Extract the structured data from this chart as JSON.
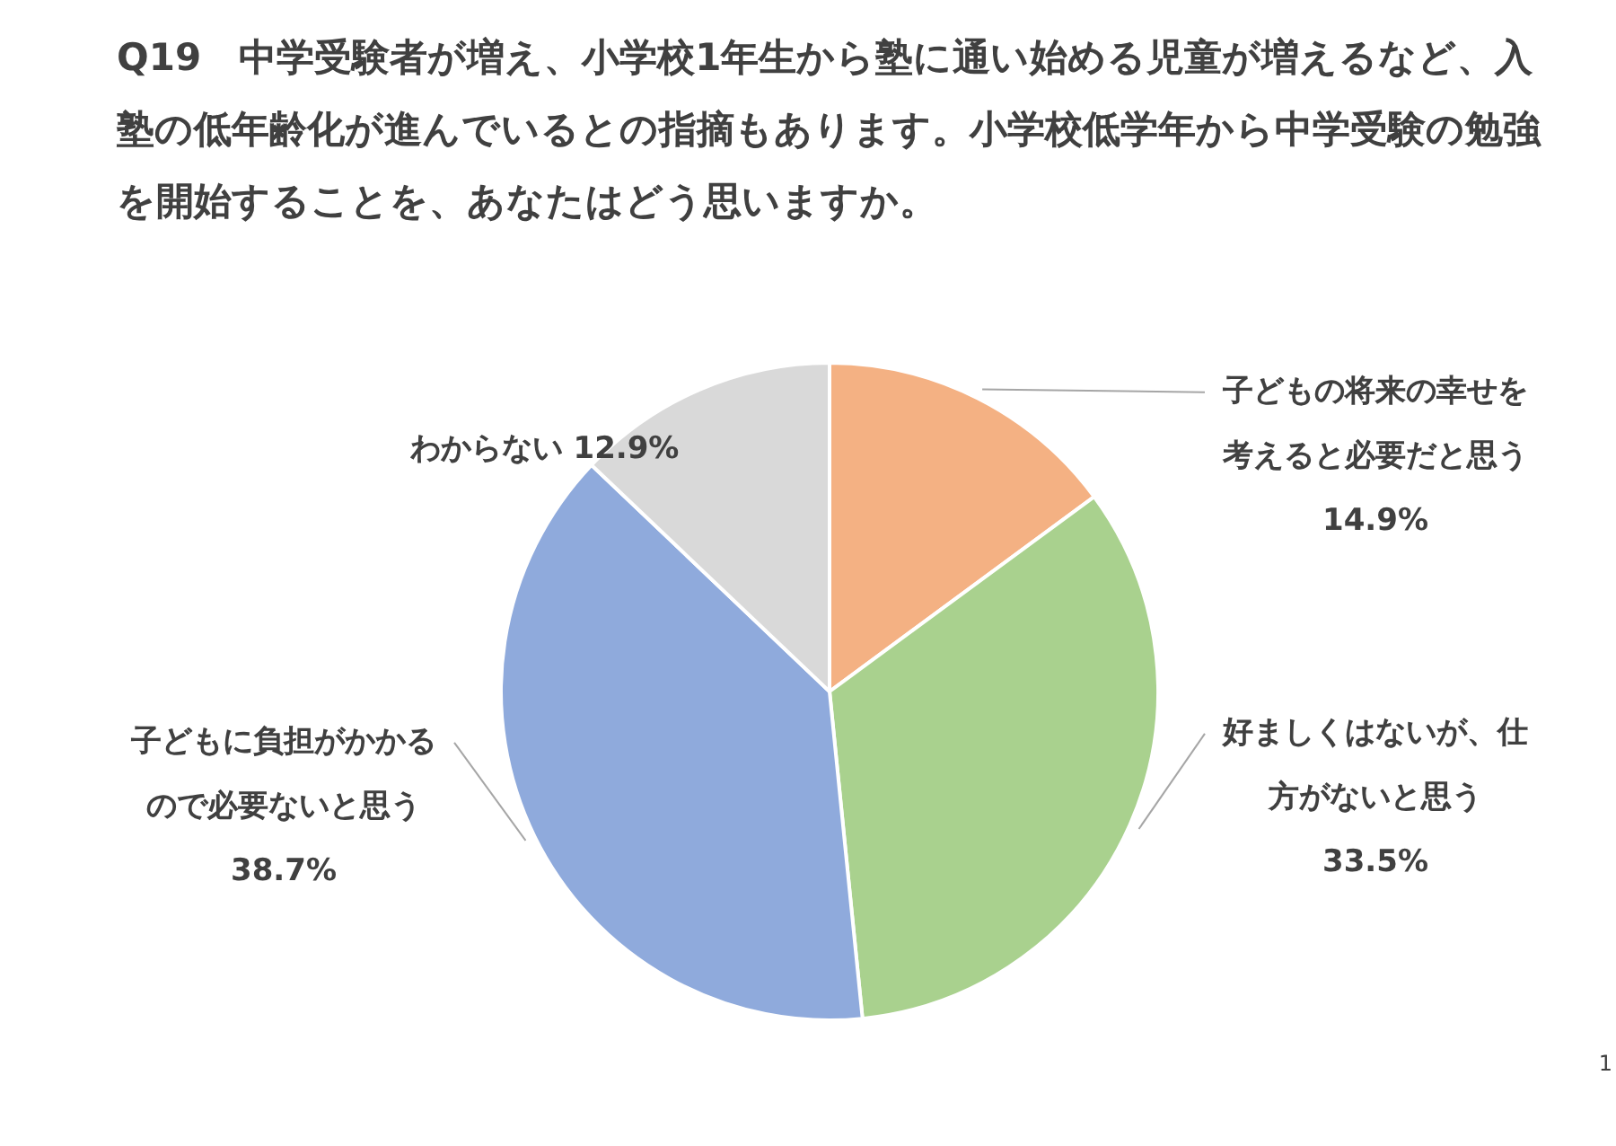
{
  "chart_data": {
    "type": "pie",
    "title": "Q19　中学受験者が増え、小学校1年生から塾に通い始める児童が増えるなど、入塾の低年齢化が進んでいるとの指摘もあります。小学校低学年から中学受験の勉強を開始することを、あなたはどう思いますか。",
    "categories": [
      "子どもの将来の幸せを考えると必要だと思う",
      "好ましくはないが、仕方がないと思う",
      "子どもに負担がかかるので必要ないと思う",
      "わからない"
    ],
    "values": [
      14.9,
      33.5,
      38.7,
      12.9
    ],
    "colors": [
      "#f4b183",
      "#a9d18e",
      "#8faadc",
      "#d9d9d9"
    ],
    "value_labels": [
      "14.9%",
      "33.5%",
      "38.7%",
      "12.9%"
    ],
    "annotations": [
      "1"
    ]
  }
}
